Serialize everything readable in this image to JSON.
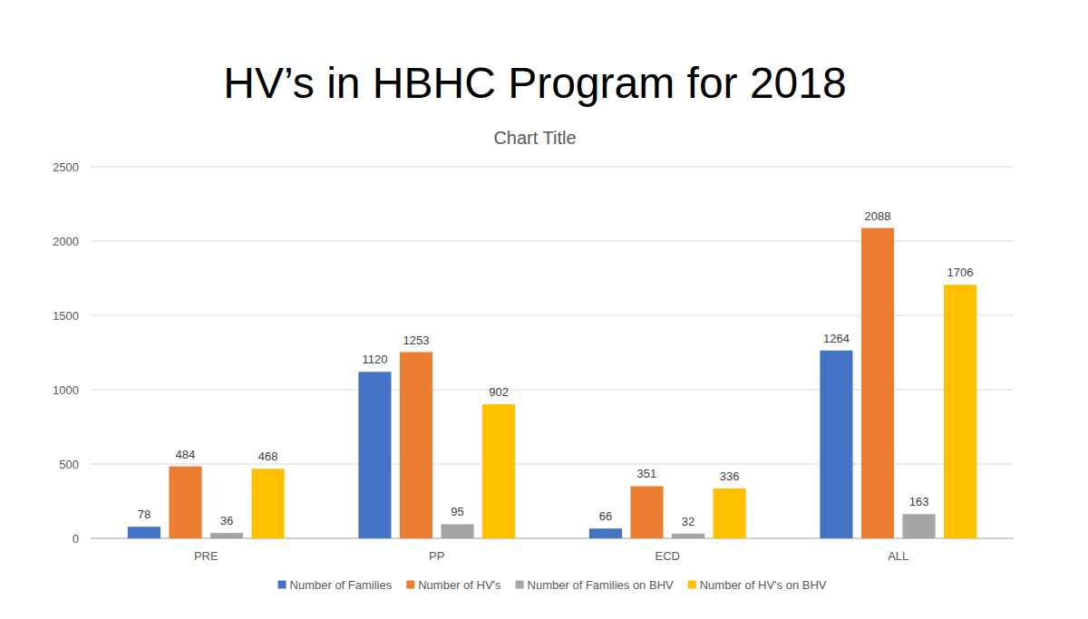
{
  "chart_data": {
    "type": "bar",
    "title": "HV’s in HBHC Program for 2018",
    "subtitle": "Chart Title",
    "categories": [
      "PRE",
      "PP",
      "ECD",
      "ALL"
    ],
    "series": [
      {
        "name": "Number of Families",
        "color": "#4472c4",
        "values": [
          78,
          1120,
          66,
          1264
        ]
      },
      {
        "name": "Number of HV's",
        "color": "#ed7d31",
        "values": [
          484,
          1253,
          351,
          2088
        ]
      },
      {
        "name": "Number of Families on BHV",
        "color": "#a5a5a5",
        "values": [
          36,
          95,
          32,
          163
        ]
      },
      {
        "name": "Number of HV's on BHV",
        "color": "#ffc000",
        "values": [
          468,
          902,
          336,
          1706
        ]
      }
    ],
    "ylim": [
      0,
      2500
    ],
    "yticks": [
      0,
      500,
      1000,
      1500,
      2000,
      2500
    ],
    "grid": true,
    "data_labels": true,
    "legend": "bottom"
  }
}
